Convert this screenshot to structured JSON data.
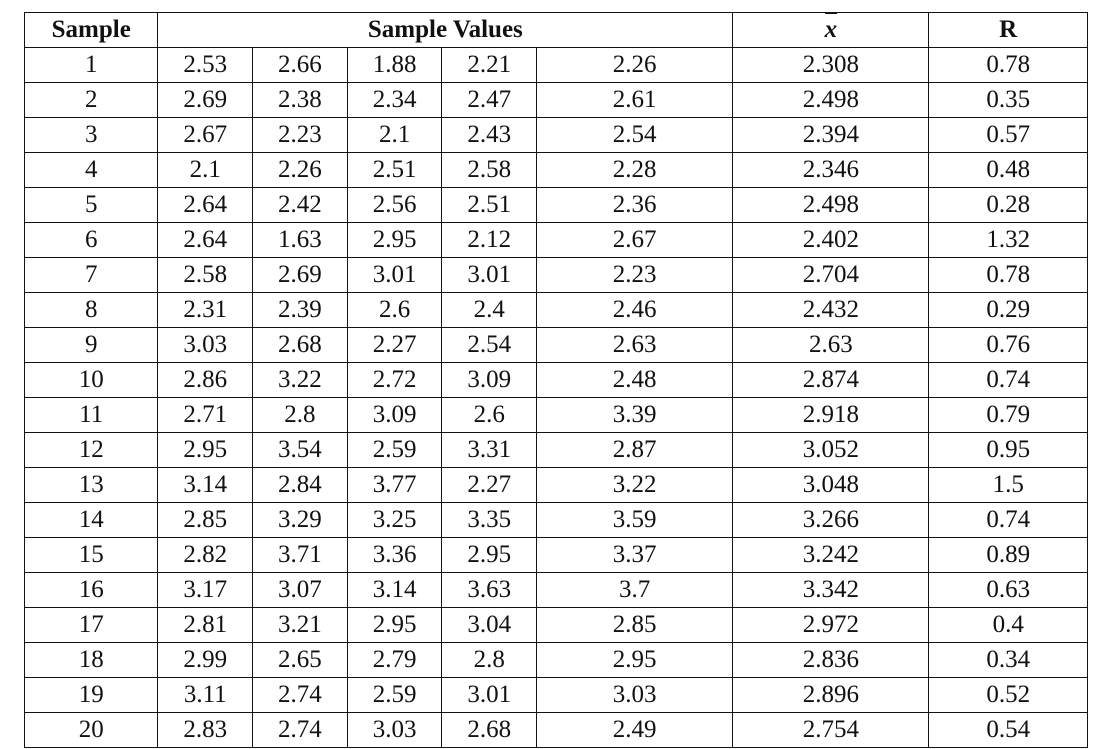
{
  "table": {
    "type": "table",
    "background_color": "#ffffff",
    "border_color": "#111111",
    "text_color": "#111111",
    "font_family": "Times New Roman",
    "header_fontsize": 25,
    "cell_fontsize": 25,
    "header_fontweight": "bold",
    "columns": {
      "sample": {
        "label": "Sample",
        "width_pct": 11.7,
        "align": "center"
      },
      "sample_values": {
        "label": "Sample Values",
        "span": 5,
        "align": "center"
      },
      "v1": {
        "width_pct": 8.3,
        "align": "center"
      },
      "v2": {
        "width_pct": 8.3,
        "align": "center"
      },
      "v3": {
        "width_pct": 8.3,
        "align": "center"
      },
      "v4": {
        "width_pct": 8.3,
        "align": "center"
      },
      "v5": {
        "width_pct": 17.2,
        "align": "center"
      },
      "xbar": {
        "label": "x̄",
        "symbol": "x-bar",
        "width_pct": 17.2,
        "align": "center"
      },
      "r": {
        "label": "R",
        "width_pct": 13.9,
        "align": "center"
      }
    },
    "rows": [
      {
        "sample": "1",
        "v1": "2.53",
        "v2": "2.66",
        "v3": "1.88",
        "v4": "2.21",
        "v5": "2.26",
        "xbar": "2.308",
        "r": "0.78"
      },
      {
        "sample": "2",
        "v1": "2.69",
        "v2": "2.38",
        "v3": "2.34",
        "v4": "2.47",
        "v5": "2.61",
        "xbar": "2.498",
        "r": "0.35"
      },
      {
        "sample": "3",
        "v1": "2.67",
        "v2": "2.23",
        "v3": "2.1",
        "v4": "2.43",
        "v5": "2.54",
        "xbar": "2.394",
        "r": "0.57"
      },
      {
        "sample": "4",
        "v1": "2.1",
        "v2": "2.26",
        "v3": "2.51",
        "v4": "2.58",
        "v5": "2.28",
        "xbar": "2.346",
        "r": "0.48"
      },
      {
        "sample": "5",
        "v1": "2.64",
        "v2": "2.42",
        "v3": "2.56",
        "v4": "2.51",
        "v5": "2.36",
        "xbar": "2.498",
        "r": "0.28"
      },
      {
        "sample": "6",
        "v1": "2.64",
        "v2": "1.63",
        "v3": "2.95",
        "v4": "2.12",
        "v5": "2.67",
        "xbar": "2.402",
        "r": "1.32"
      },
      {
        "sample": "7",
        "v1": "2.58",
        "v2": "2.69",
        "v3": "3.01",
        "v4": "3.01",
        "v5": "2.23",
        "xbar": "2.704",
        "r": "0.78"
      },
      {
        "sample": "8",
        "v1": "2.31",
        "v2": "2.39",
        "v3": "2.6",
        "v4": "2.4",
        "v5": "2.46",
        "xbar": "2.432",
        "r": "0.29"
      },
      {
        "sample": "9",
        "v1": "3.03",
        "v2": "2.68",
        "v3": "2.27",
        "v4": "2.54",
        "v5": "2.63",
        "xbar": "2.63",
        "r": "0.76"
      },
      {
        "sample": "10",
        "v1": "2.86",
        "v2": "3.22",
        "v3": "2.72",
        "v4": "3.09",
        "v5": "2.48",
        "xbar": "2.874",
        "r": "0.74"
      },
      {
        "sample": "11",
        "v1": "2.71",
        "v2": "2.8",
        "v3": "3.09",
        "v4": "2.6",
        "v5": "3.39",
        "xbar": "2.918",
        "r": "0.79"
      },
      {
        "sample": "12",
        "v1": "2.95",
        "v2": "3.54",
        "v3": "2.59",
        "v4": "3.31",
        "v5": "2.87",
        "xbar": "3.052",
        "r": "0.95"
      },
      {
        "sample": "13",
        "v1": "3.14",
        "v2": "2.84",
        "v3": "3.77",
        "v4": "2.27",
        "v5": "3.22",
        "xbar": "3.048",
        "r": "1.5"
      },
      {
        "sample": "14",
        "v1": "2.85",
        "v2": "3.29",
        "v3": "3.25",
        "v4": "3.35",
        "v5": "3.59",
        "xbar": "3.266",
        "r": "0.74"
      },
      {
        "sample": "15",
        "v1": "2.82",
        "v2": "3.71",
        "v3": "3.36",
        "v4": "2.95",
        "v5": "3.37",
        "xbar": "3.242",
        "r": "0.89"
      },
      {
        "sample": "16",
        "v1": "3.17",
        "v2": "3.07",
        "v3": "3.14",
        "v4": "3.63",
        "v5": "3.7",
        "xbar": "3.342",
        "r": "0.63"
      },
      {
        "sample": "17",
        "v1": "2.81",
        "v2": "3.21",
        "v3": "2.95",
        "v4": "3.04",
        "v5": "2.85",
        "xbar": "2.972",
        "r": "0.4"
      },
      {
        "sample": "18",
        "v1": "2.99",
        "v2": "2.65",
        "v3": "2.79",
        "v4": "2.8",
        "v5": "2.95",
        "xbar": "2.836",
        "r": "0.34"
      },
      {
        "sample": "19",
        "v1": "3.11",
        "v2": "2.74",
        "v3": "2.59",
        "v4": "3.01",
        "v5": "3.03",
        "xbar": "2.896",
        "r": "0.52"
      },
      {
        "sample": "20",
        "v1": "2.83",
        "v2": "2.74",
        "v3": "3.03",
        "v4": "2.68",
        "v5": "2.49",
        "xbar": "2.754",
        "r": "0.54"
      }
    ]
  }
}
